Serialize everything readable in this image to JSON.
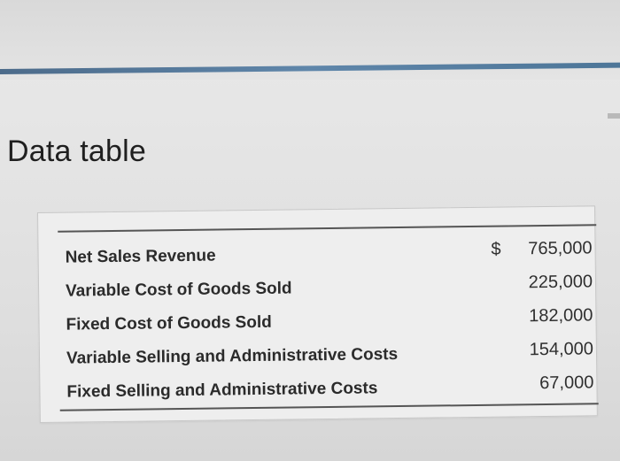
{
  "page": {
    "title": "Data table"
  },
  "table": {
    "rows": [
      {
        "label": "Net Sales Revenue",
        "currency": "$",
        "value": "765,000"
      },
      {
        "label": "Variable Cost of Goods Sold",
        "currency": "",
        "value": "225,000"
      },
      {
        "label": "Fixed Cost of Goods Sold",
        "currency": "",
        "value": "182,000"
      },
      {
        "label": "Variable Selling and Administrative Costs",
        "currency": "",
        "value": "154,000"
      },
      {
        "label": "Fixed Selling and Administrative Costs",
        "currency": "",
        "value": "67,000"
      }
    ]
  },
  "colors": {
    "top_line": "#5f86aa",
    "background": "#e5e5e5",
    "panel": "#eeeeee",
    "text": "#2b2b2b"
  }
}
